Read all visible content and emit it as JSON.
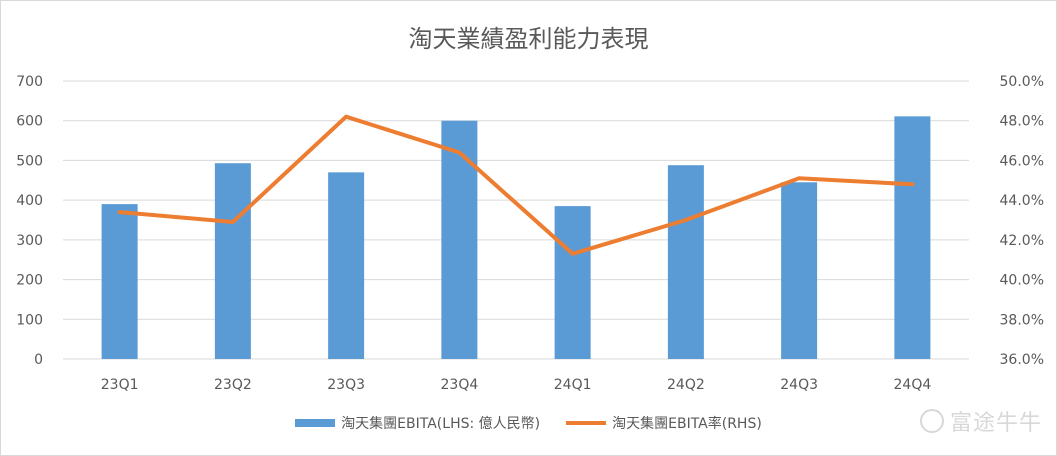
{
  "chart_data": {
    "type": "bar",
    "title": "淘天業績盈利能力表現",
    "categories": [
      "23Q1",
      "23Q2",
      "23Q3",
      "23Q4",
      "24Q1",
      "24Q2",
      "24Q3",
      "24Q4"
    ],
    "series": [
      {
        "name": "淘天集團EBITA(LHS: 億人民幣)",
        "type": "bar",
        "axis": "left",
        "color": "#5b9bd5",
        "values": [
          390,
          493,
          470,
          600,
          385,
          488,
          445,
          611
        ]
      },
      {
        "name": "淘天集團EBITA率(RHS)",
        "type": "line",
        "axis": "right",
        "color": "#ed7d31",
        "values": [
          43.4,
          42.9,
          48.2,
          46.4,
          41.3,
          43.0,
          45.1,
          44.8
        ]
      }
    ],
    "yleft": {
      "min": 0,
      "max": 700,
      "step": 100,
      "ticks": [
        "0",
        "100",
        "200",
        "300",
        "400",
        "500",
        "600",
        "700"
      ]
    },
    "yright": {
      "min": 36,
      "max": 50,
      "step": 2,
      "ticks": [
        "36.0%",
        "38.0%",
        "40.0%",
        "42.0%",
        "44.0%",
        "46.0%",
        "48.0%",
        "50.0%"
      ]
    },
    "grid": true,
    "legend_position": "bottom"
  },
  "watermark": {
    "text": "富途牛牛",
    "icon": "futu-logo-icon"
  }
}
